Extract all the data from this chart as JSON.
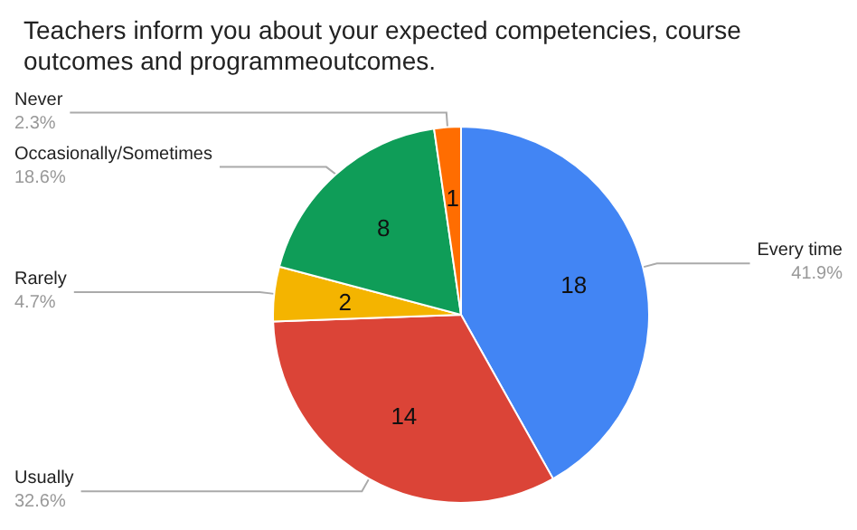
{
  "chart_data": {
    "type": "pie",
    "title": "Teachers inform you about your expected competencies, course outcomes and programmeoutcomes.",
    "categories": [
      "Every time",
      "Usually",
      "Rarely",
      "Occasionally/Sometimes",
      "Never"
    ],
    "values": [
      41.9,
      32.6,
      4.7,
      18.6,
      2.3
    ],
    "colors": [
      "#4285f4",
      "#db4437",
      "#f4b400",
      "#0f9d58",
      "#ff6d01"
    ],
    "value_labels": [
      "41.9%",
      "32.6%",
      "4.7%",
      "18.6%",
      "2.3%"
    ],
    "annotations": [
      {
        "text": "18",
        "x": "Every time"
      },
      {
        "text": "14",
        "x": "Usually"
      },
      {
        "text": "2",
        "x": "Rarely"
      },
      {
        "text": "8",
        "x": "Occasionally/Sometimes"
      },
      {
        "text": "1",
        "x": "Never"
      }
    ],
    "legend": false
  }
}
